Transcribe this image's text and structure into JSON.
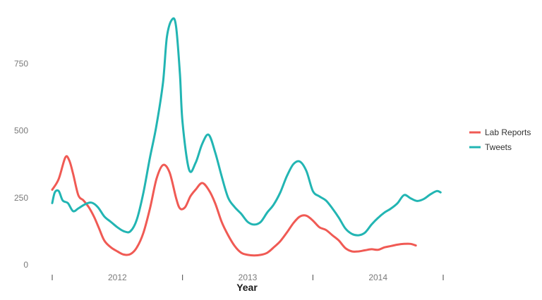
{
  "chart_data": {
    "type": "line",
    "xlabel": "Year",
    "ylabel": "",
    "xlim": [
      2011.5,
      2014.5
    ],
    "ylim": [
      0,
      930
    ],
    "x_ticks": [
      {
        "value": 2011.5,
        "label": ""
      },
      {
        "value": 2012.0,
        "label": "2012"
      },
      {
        "value": 2012.5,
        "label": ""
      },
      {
        "value": 2013.0,
        "label": "2013"
      },
      {
        "value": 2013.5,
        "label": ""
      },
      {
        "value": 2014.0,
        "label": "2014"
      },
      {
        "value": 2014.5,
        "label": ""
      }
    ],
    "y_ticks": [
      {
        "value": 0,
        "label": "0"
      },
      {
        "value": 250,
        "label": "250"
      },
      {
        "value": 500,
        "label": "500"
      },
      {
        "value": 750,
        "label": "750"
      }
    ],
    "grid": false,
    "legend_position": "right",
    "series": [
      {
        "name": "Lab Reports",
        "color": "#f05a54",
        "x": [
          2011.5,
          2011.55,
          2011.6,
          2011.63,
          2011.66,
          2011.7,
          2011.74,
          2011.78,
          2011.82,
          2011.86,
          2011.9,
          2011.95,
          2012.0,
          2012.05,
          2012.1,
          2012.15,
          2012.2,
          2012.25,
          2012.3,
          2012.35,
          2012.4,
          2012.45,
          2012.48,
          2012.52,
          2012.56,
          2012.6,
          2012.65,
          2012.7,
          2012.75,
          2012.8,
          2012.85,
          2012.9,
          2012.95,
          2013.0,
          2013.05,
          2013.1,
          2013.15,
          2013.2,
          2013.25,
          2013.3,
          2013.35,
          2013.4,
          2013.45,
          2013.5,
          2013.55,
          2013.6,
          2013.65,
          2013.7,
          2013.75,
          2013.8,
          2013.85,
          2013.9,
          2013.95,
          2014.0,
          2014.05,
          2014.1,
          2014.15,
          2014.2,
          2014.25,
          2014.29
        ],
        "values": [
          280,
          320,
          400,
          390,
          340,
          260,
          240,
          215,
          180,
          135,
          90,
          65,
          50,
          38,
          40,
          65,
          120,
          210,
          320,
          372,
          345,
          250,
          210,
          215,
          255,
          280,
          305,
          280,
          230,
          160,
          110,
          70,
          45,
          37,
          35,
          37,
          45,
          65,
          88,
          120,
          155,
          180,
          183,
          165,
          140,
          130,
          110,
          90,
          62,
          50,
          50,
          54,
          58,
          56,
          65,
          70,
          75,
          78,
          78,
          72
        ]
      },
      {
        "name": "Tweets",
        "color": "#22b5b3",
        "x": [
          2011.5,
          2011.52,
          2011.55,
          2011.58,
          2011.62,
          2011.66,
          2011.7,
          2011.75,
          2011.8,
          2011.85,
          2011.9,
          2011.95,
          2012.0,
          2012.05,
          2012.1,
          2012.15,
          2012.2,
          2012.25,
          2012.3,
          2012.35,
          2012.38,
          2012.42,
          2012.45,
          2012.48,
          2012.5,
          2012.55,
          2012.6,
          2012.65,
          2012.7,
          2012.75,
          2012.8,
          2012.85,
          2012.9,
          2012.95,
          2013.0,
          2013.05,
          2013.1,
          2013.15,
          2013.2,
          2013.25,
          2013.3,
          2013.35,
          2013.4,
          2013.45,
          2013.5,
          2013.55,
          2013.6,
          2013.65,
          2013.7,
          2013.75,
          2013.8,
          2013.85,
          2013.9,
          2013.95,
          2014.0,
          2014.05,
          2014.1,
          2014.15,
          2014.2,
          2014.25,
          2014.3,
          2014.35,
          2014.4,
          2014.45,
          2014.48
        ],
        "values": [
          230,
          270,
          275,
          240,
          230,
          200,
          210,
          225,
          232,
          215,
          180,
          160,
          140,
          125,
          125,
          170,
          270,
          400,
          520,
          680,
          850,
          915,
          890,
          710,
          530,
          355,
          380,
          450,
          485,
          420,
          330,
          250,
          215,
          190,
          160,
          150,
          160,
          195,
          225,
          270,
          330,
          375,
          385,
          350,
          275,
          255,
          240,
          210,
          175,
          135,
          115,
          110,
          120,
          150,
          175,
          195,
          210,
          230,
          260,
          248,
          238,
          245,
          262,
          275,
          270
        ]
      }
    ]
  }
}
